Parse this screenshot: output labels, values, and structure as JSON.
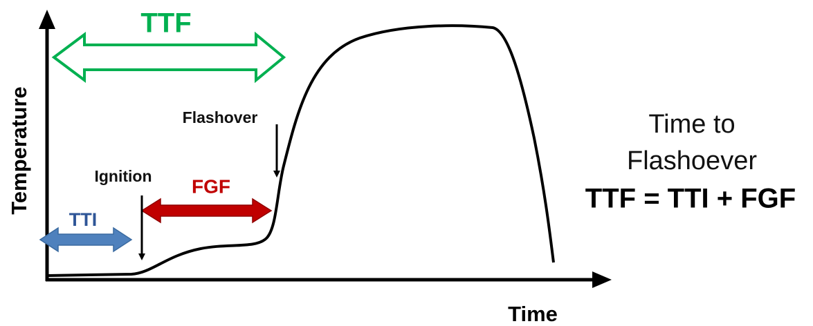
{
  "diagram": {
    "y_axis_label": "Temperature",
    "x_axis_label": "Time",
    "annotations": {
      "ttf": "TTF",
      "tti": "TTI",
      "fgf": "FGF",
      "ignition": "Ignition",
      "flashover": "Flashover"
    },
    "definition": {
      "line1": "Time to",
      "line2": "Flashoever",
      "formula": "TTF = TTI + FGF"
    }
  }
}
